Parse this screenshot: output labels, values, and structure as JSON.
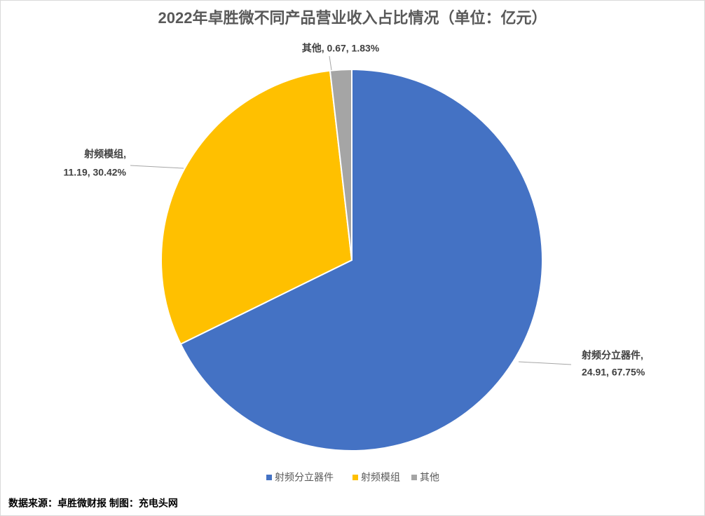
{
  "chart_data": {
    "type": "pie",
    "title": "2022年卓胜微不同产品营业收入占比情况（单位：亿元）",
    "categories": [
      "射频分立器件",
      "射频模组",
      "其他"
    ],
    "values": [
      24.91,
      11.19,
      0.67
    ],
    "value_labels": [
      [
        "射频分立器件,",
        "24.91, 67.75%"
      ],
      [
        "射频模组,",
        "11.19, 30.42%"
      ],
      [
        "其他, 0.67, 1.83%"
      ]
    ],
    "colors": [
      "#4472c4",
      "#ffc000",
      "#a5a5a5"
    ],
    "legend": "bottom",
    "source": "数据来源：卓胜微财报  制图：充电头网"
  }
}
